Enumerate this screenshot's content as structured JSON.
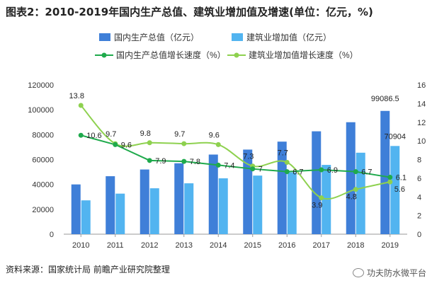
{
  "title": "图表2：2010-2019年国内生产总值、建筑业增加值及增速(单位：亿元，%)",
  "source": "资料来源：国家统计局 前瞻产业研究院整理",
  "brand": "功夫防水微平台",
  "colors": {
    "gdp_bar": "#3f7fd8",
    "cons_bar": "#52b4f0",
    "gdp_line": "#1faa4c",
    "cons_line": "#8ed14f"
  },
  "chart_data": {
    "type": "bar",
    "categories": [
      "2010",
      "2011",
      "2012",
      "2013",
      "2014",
      "2015",
      "2016",
      "2017",
      "2018",
      "2019"
    ],
    "series": [
      {
        "name": "国内生产总值（亿元）",
        "kind": "bar",
        "axis": "left",
        "values": [
          40000,
          46600,
          52000,
          57000,
          64000,
          68000,
          74400,
          82700,
          90000,
          99086.5
        ]
      },
      {
        "name": "建筑业增加值（亿元）",
        "kind": "bar",
        "axis": "left",
        "values": [
          27200,
          32600,
          36900,
          40900,
          44900,
          47100,
          49700,
          55700,
          65500,
          70904
        ]
      },
      {
        "name": "国内生产总值增长速度（%）",
        "kind": "line",
        "axis": "right",
        "values": [
          10.6,
          9.6,
          7.9,
          7.8,
          7.4,
          7,
          6.7,
          6.9,
          6.7,
          6.1
        ]
      },
      {
        "name": "建筑业增加值增长速度（%）",
        "kind": "line",
        "axis": "right",
        "values": [
          13.8,
          9.7,
          9.8,
          9.7,
          9.6,
          7.3,
          7.7,
          3.9,
          4.8,
          5.6
        ]
      }
    ],
    "data_labels": {
      "gdp_bar": [
        "",
        "",
        "",
        "",
        "",
        "",
        "",
        "",
        "",
        "99086.5"
      ],
      "cons_bar": [
        "",
        "",
        "",
        "",
        "",
        "",
        "",
        "",
        "",
        "70904"
      ],
      "gdp_line": [
        "10.6",
        "9.6",
        "7.9",
        "7.8",
        "7.4",
        "7",
        "6.7",
        "6.9",
        "6.7",
        "6.1"
      ],
      "cons_line": [
        "13.8",
        "9.7",
        "9.8",
        "9.7",
        "9.6",
        "7.3",
        "7.7",
        "3.9",
        "4.8",
        "5.6"
      ]
    },
    "y_left": {
      "min": 0,
      "max": 120000,
      "ticks": [
        "0",
        "20000",
        "40000",
        "60000",
        "80000",
        "100000",
        "120000"
      ]
    },
    "y_right": {
      "min": 0,
      "max": 16,
      "ticks": [
        "0",
        "2",
        "4",
        "6",
        "8",
        "10",
        "12",
        "14",
        "16"
      ]
    },
    "legend_position": "top",
    "grid": false
  }
}
